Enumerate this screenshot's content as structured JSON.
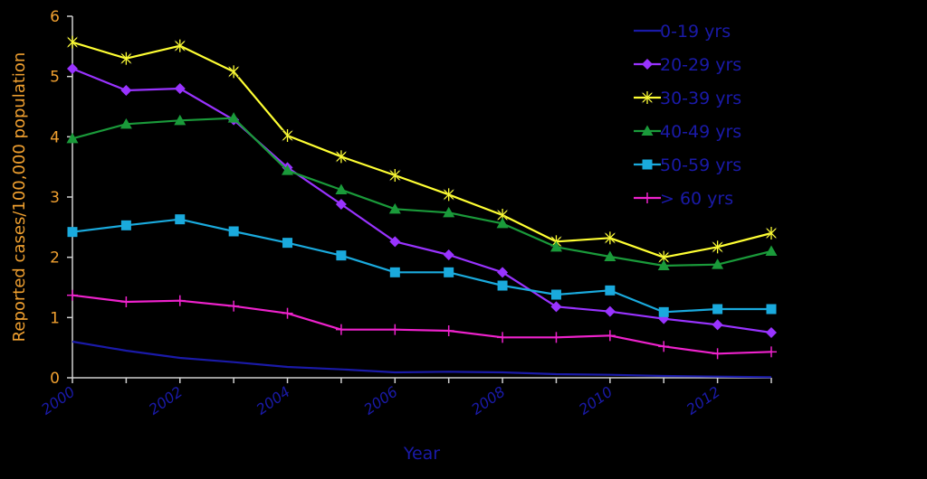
{
  "chart_data": {
    "type": "line",
    "title": "",
    "xlabel": "Year",
    "ylabel": "Reported cases/100,000 population",
    "xlim": [
      2000,
      2013
    ],
    "ylim": [
      0,
      6
    ],
    "y_ticks": [
      "0",
      "1",
      "2",
      "3",
      "4",
      "5",
      "6"
    ],
    "x_ticks": [
      "2000",
      "2002",
      "2004",
      "2006",
      "2008",
      "2010",
      "2012"
    ],
    "x": [
      2000,
      2001,
      2002,
      2003,
      2004,
      2005,
      2006,
      2007,
      2008,
      2009,
      2010,
      2011,
      2012,
      2013
    ],
    "grid": false,
    "legend_position": "top-right",
    "series": [
      {
        "name": "0-19 yrs",
        "color": "#1a1aa8",
        "marker": "none",
        "values": [
          0.6,
          0.45,
          0.33,
          0.26,
          0.18,
          0.14,
          0.09,
          0.1,
          0.09,
          0.06,
          0.05,
          0.03,
          0.02,
          0.01
        ]
      },
      {
        "name": "20-29 yrs",
        "color": "#9933ff",
        "marker": "diamond",
        "values": [
          5.13,
          4.77,
          4.8,
          4.28,
          3.49,
          2.88,
          2.26,
          2.04,
          1.75,
          1.18,
          1.1,
          0.98,
          0.88,
          0.75
        ]
      },
      {
        "name": "30-39 yrs",
        "color": "#ffff33",
        "marker": "star",
        "values": [
          5.57,
          5.3,
          5.51,
          5.08,
          4.02,
          3.67,
          3.36,
          3.04,
          2.7,
          2.26,
          2.32,
          2.0,
          2.17,
          2.4
        ]
      },
      {
        "name": "40-49 yrs",
        "color": "#1a9a3a",
        "marker": "triangle",
        "values": [
          3.97,
          4.21,
          4.27,
          4.31,
          3.44,
          3.12,
          2.8,
          2.74,
          2.56,
          2.17,
          2.01,
          1.86,
          1.88,
          2.1
        ]
      },
      {
        "name": "50-59 yrs",
        "color": "#1aaadd",
        "marker": "square",
        "values": [
          2.42,
          2.53,
          2.63,
          2.43,
          2.24,
          2.03,
          1.75,
          1.75,
          1.53,
          1.38,
          1.45,
          1.09,
          1.14,
          1.14
        ]
      },
      {
        "name": "> 60 yrs",
        "color": "#ee22cc",
        "marker": "plus",
        "values": [
          1.37,
          1.26,
          1.28,
          1.19,
          1.07,
          0.8,
          0.8,
          0.78,
          0.67,
          0.67,
          0.7,
          0.52,
          0.4,
          0.43
        ]
      }
    ]
  }
}
